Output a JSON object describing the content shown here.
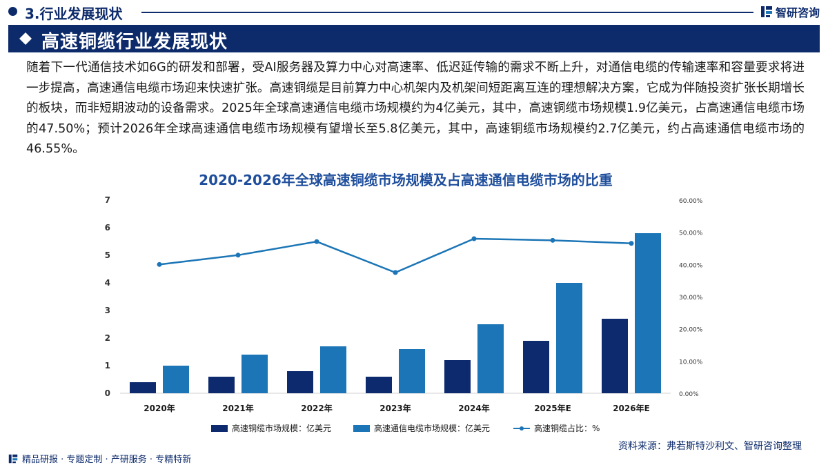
{
  "header": {
    "section": "3.行业发展现状",
    "brand": "智研咨询"
  },
  "banner": {
    "title": "高速铜缆行业发展现状"
  },
  "paragraph": "随着下一代通信技术如6G的研发和部署，受AI服务器及算力中心对高速率、低迟延传输的需求不断上升，对通信电缆的传输速率和容量要求将进一步提高，高速通信电缆市场迎来快速扩张。高速铜缆是目前算力中心机架内及机架间短距离互连的理想解决方案，它成为伴随投资扩张长期增长的板块，而非短期波动的设备需求。2025年全球高速通信电缆市场规模约为4亿美元，其中，高速铜缆市场规模1.9亿美元，占高速通信电缆市场的47.50%；预计2026年全球高速通信电缆市场规模有望增长至5.8亿美元，其中，高速铜缆市场规模约2.7亿美元，约占高速通信电缆市场的46.55%。",
  "chart_data": {
    "type": "bar",
    "title": "2020-2026年全球高速铜缆市场规模及占高速通信电缆市场的比重",
    "categories": [
      "2020年",
      "2021年",
      "2022年",
      "2023年",
      "2024年",
      "2025年E",
      "2026年E"
    ],
    "series": [
      {
        "name": "高速铜缆市场规模：亿美元",
        "type": "bar",
        "axis": "left",
        "color": "#0e2a6e",
        "values": [
          0.4,
          0.6,
          0.8,
          0.6,
          1.2,
          1.9,
          2.7
        ]
      },
      {
        "name": "高速通信电缆市场规模：亿美元",
        "type": "bar",
        "axis": "left",
        "color": "#1b75b6",
        "values": [
          1.0,
          1.4,
          1.7,
          1.6,
          2.5,
          4.0,
          5.8
        ]
      },
      {
        "name": "高速铜缆占比：%",
        "type": "line",
        "axis": "right",
        "color": "#1b75b6",
        "values": [
          40.0,
          42.9,
          47.1,
          37.5,
          48.0,
          47.5,
          46.55
        ]
      }
    ],
    "ylim_left": [
      0,
      7
    ],
    "yticks_left": [
      "0",
      "1",
      "2",
      "3",
      "4",
      "5",
      "6",
      "7"
    ],
    "ylim_right": [
      0,
      60
    ],
    "yticks_right": [
      "0.00%",
      "10.00%",
      "20.00%",
      "30.00%",
      "40.00%",
      "50.00%",
      "60.00%"
    ],
    "legend_position": "bottom-center",
    "grid": false
  },
  "source": "资料来源：弗若斯特沙利文、智研咨询整理",
  "footer": "精品研报 · 专题定制 · 产研服务 · 专精特新"
}
